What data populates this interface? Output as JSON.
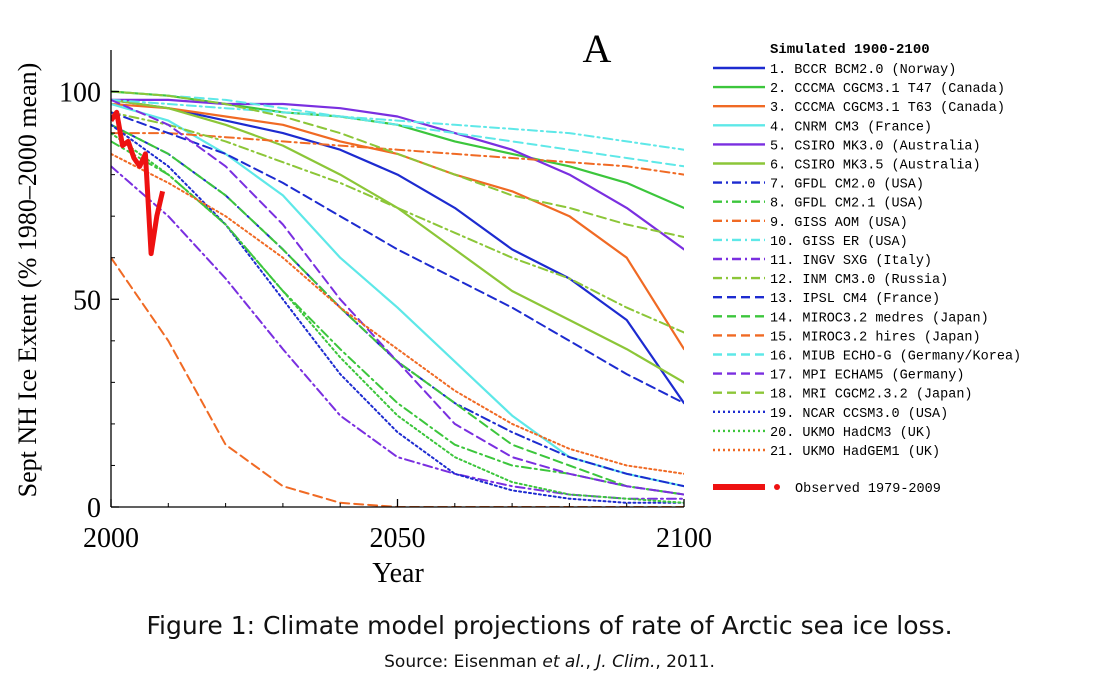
{
  "chart_data": {
    "type": "line",
    "panel_label": "A",
    "xlabel": "Year",
    "ylabel": "Sept NH Ice Extent (% 1980–2000 mean)",
    "xlim": [
      2000,
      2100
    ],
    "ylim": [
      0,
      110
    ],
    "x_ticks": [
      "2000",
      "2050",
      "2100"
    ],
    "y_ticks": [
      "0",
      "50",
      "100"
    ],
    "grid": false,
    "legend_position": "right",
    "legend_title": "Simulated 1900-2100",
    "x": [
      2000,
      2010,
      2020,
      2030,
      2040,
      2050,
      2060,
      2070,
      2080,
      2090,
      2100
    ],
    "series": [
      {
        "name": "1.  BCCR BCM2.0 (Norway)",
        "color": "#1d2bd0",
        "dash": "solid",
        "width": 2.2,
        "values": [
          98,
          96,
          93,
          90,
          86,
          80,
          72,
          62,
          55,
          45,
          25
        ]
      },
      {
        "name": "2.  CCCMA CGCM3.1 T47 (Canada)",
        "color": "#3cc63c",
        "dash": "solid",
        "width": 2.2,
        "values": [
          100,
          99,
          97,
          95,
          94,
          92,
          88,
          85,
          82,
          78,
          72
        ]
      },
      {
        "name": "3.  CCCMA CGCM3.1 T63 (Canada)",
        "color": "#f06a24",
        "dash": "solid",
        "width": 2.2,
        "values": [
          97,
          96,
          94,
          92,
          88,
          85,
          80,
          76,
          70,
          60,
          38
        ]
      },
      {
        "name": "4.  CNRM CM3 (France)",
        "color": "#5ee8e8",
        "dash": "solid",
        "width": 2.2,
        "values": [
          97,
          93,
          85,
          75,
          60,
          48,
          35,
          22,
          12,
          8,
          5
        ]
      },
      {
        "name": "5.  CSIRO MK3.0 (Australia)",
        "color": "#7a2fe0",
        "dash": "solid",
        "width": 2.2,
        "values": [
          98,
          98,
          97,
          97,
          96,
          94,
          90,
          86,
          80,
          72,
          62
        ]
      },
      {
        "name": "6.  CSIRO MK3.5 (Australia)",
        "color": "#8cc638",
        "dash": "solid",
        "width": 2.2,
        "values": [
          98,
          96,
          92,
          87,
          80,
          72,
          62,
          52,
          45,
          38,
          30
        ]
      },
      {
        "name": "7.  GFDL CM2.0 (USA)",
        "color": "#1d2bd0",
        "dash": "dashdot",
        "width": 2,
        "values": [
          92,
          85,
          75,
          62,
          48,
          35,
          25,
          18,
          12,
          8,
          5
        ]
      },
      {
        "name": "8.  GFDL CM2.1 (USA)",
        "color": "#3cc63c",
        "dash": "dashdot",
        "width": 2,
        "values": [
          88,
          80,
          68,
          52,
          38,
          25,
          15,
          10,
          8,
          5,
          3
        ]
      },
      {
        "name": "9.  GISS AOM (USA)",
        "color": "#f06a24",
        "dash": "dashdot",
        "width": 2,
        "values": [
          90,
          90,
          89,
          88,
          87,
          86,
          85,
          84,
          83,
          82,
          80
        ]
      },
      {
        "name": "10.  GISS ER (USA)",
        "color": "#5ee8e8",
        "dash": "dashdot",
        "width": 2,
        "values": [
          98,
          97,
          96,
          95,
          94,
          93,
          92,
          91,
          90,
          88,
          86
        ]
      },
      {
        "name": "11.  INGV SXG (Italy)",
        "color": "#7a2fe0",
        "dash": "dashdot",
        "width": 2,
        "values": [
          82,
          70,
          55,
          38,
          22,
          12,
          8,
          5,
          3,
          2,
          2
        ]
      },
      {
        "name": "12.  INM CM3.0 (Russia)",
        "color": "#8cc638",
        "dash": "dashdot",
        "width": 2,
        "values": [
          95,
          92,
          88,
          83,
          78,
          72,
          66,
          60,
          55,
          48,
          42
        ]
      },
      {
        "name": "13.  IPSL CM4 (France)",
        "color": "#1d2bd0",
        "dash": "dashed",
        "width": 2,
        "values": [
          95,
          90,
          85,
          78,
          70,
          62,
          55,
          48,
          40,
          32,
          25
        ]
      },
      {
        "name": "14.  MIROC3.2 medres (Japan)",
        "color": "#3cc63c",
        "dash": "dashed",
        "width": 2,
        "values": [
          92,
          85,
          75,
          62,
          48,
          35,
          25,
          15,
          10,
          5,
          3
        ]
      },
      {
        "name": "15.  MIROC3.2 hires (Japan)",
        "color": "#f06a24",
        "dash": "dashed",
        "width": 2,
        "values": [
          60,
          40,
          15,
          5,
          1,
          0,
          0,
          0,
          0,
          0,
          0
        ]
      },
      {
        "name": "16.  MIUB ECHO-G (Germany/Korea)",
        "color": "#5ee8e8",
        "dash": "dashed",
        "width": 2,
        "values": [
          100,
          99,
          98,
          96,
          94,
          92,
          90,
          88,
          86,
          84,
          82
        ]
      },
      {
        "name": "17.  MPI ECHAM5 (Germany)",
        "color": "#7a2fe0",
        "dash": "dashed",
        "width": 2,
        "values": [
          98,
          92,
          82,
          68,
          50,
          35,
          20,
          12,
          8,
          5,
          3
        ]
      },
      {
        "name": "18.  MRI CGCM2.3.2 (Japan)",
        "color": "#8cc638",
        "dash": "dashed",
        "width": 2,
        "values": [
          100,
          99,
          97,
          94,
          90,
          85,
          80,
          75,
          72,
          68,
          65
        ]
      },
      {
        "name": "19.  NCAR CCSM3.0 (USA)",
        "color": "#1d2bd0",
        "dash": "dotted",
        "width": 2,
        "values": [
          92,
          82,
          68,
          50,
          32,
          18,
          8,
          4,
          2,
          1,
          1
        ]
      },
      {
        "name": "20.  UKMO HadCM3 (UK)",
        "color": "#3cc63c",
        "dash": "dotted",
        "width": 2,
        "values": [
          90,
          80,
          68,
          52,
          36,
          22,
          12,
          6,
          3,
          2,
          1
        ]
      },
      {
        "name": "21.  UKMO HadGEM1 (UK)",
        "color": "#f06a24",
        "dash": "dotted",
        "width": 2,
        "values": [
          85,
          78,
          70,
          60,
          48,
          38,
          28,
          20,
          14,
          10,
          8
        ]
      }
    ],
    "observed": {
      "name": "Observed 1979-2009",
      "color": "#ee1111",
      "x": [
        2000,
        2001,
        2002,
        2003,
        2004,
        2005,
        2006,
        2007,
        2008,
        2009
      ],
      "values": [
        93,
        95,
        87,
        88,
        84,
        82,
        85,
        61,
        70,
        76
      ]
    }
  },
  "caption": {
    "title": "Figure 1: Climate model projections of rate of Arctic sea ice loss.",
    "source_prefix": "Source: Eisenman ",
    "source_etal": "et al.",
    "source_mid": ", ",
    "source_journal": "J. Clim.",
    "source_suffix": ", 2011."
  }
}
